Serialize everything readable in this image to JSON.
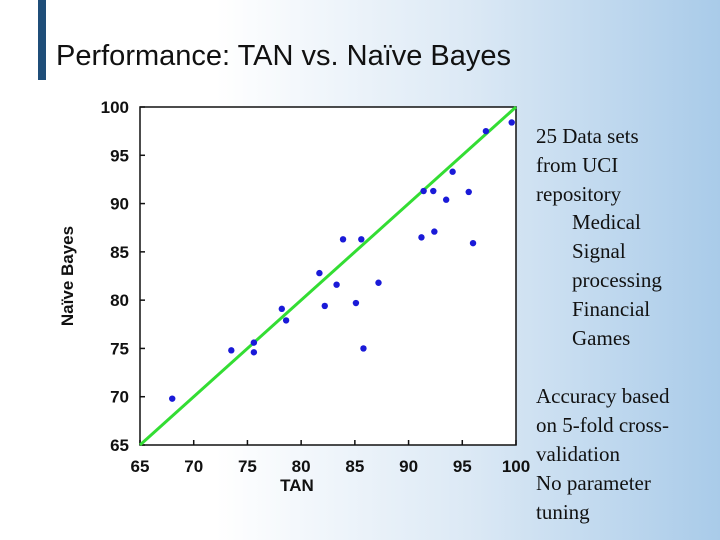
{
  "title": "Performance: TAN vs. Naïve Bayes",
  "notes": {
    "block1": [
      "25 Data sets",
      "from UCI",
      "repository"
    ],
    "block1_sub": [
      "Medical",
      "Signal",
      "processing",
      "Financial",
      "Games"
    ],
    "block2": [
      "Accuracy based",
      "on 5-fold cross-",
      "validation",
      "No parameter",
      "tuning"
    ]
  },
  "colors": {
    "points": "#1a1ad8",
    "diagonal": "#33dd33",
    "title_bar": "#1f4e79"
  },
  "chart_data": {
    "type": "scatter",
    "xlabel": "TAN",
    "ylabel": "Naïve Bayes",
    "xlim": [
      65,
      100
    ],
    "ylim": [
      65,
      100
    ],
    "xticks": [
      65,
      70,
      75,
      80,
      85,
      90,
      95,
      100
    ],
    "yticks": [
      100,
      95,
      90,
      85,
      80,
      75,
      70,
      65
    ],
    "reference_line": {
      "from": [
        65,
        65
      ],
      "to": [
        100,
        100
      ]
    },
    "points": [
      {
        "x": 68,
        "y": 69.8
      },
      {
        "x": 73.5,
        "y": 74.8
      },
      {
        "x": 75.6,
        "y": 75.6
      },
      {
        "x": 75.6,
        "y": 74.6
      },
      {
        "x": 78.2,
        "y": 79.1
      },
      {
        "x": 78.6,
        "y": 77.9
      },
      {
        "x": 81.7,
        "y": 82.8
      },
      {
        "x": 82.2,
        "y": 79.4
      },
      {
        "x": 83.3,
        "y": 81.6
      },
      {
        "x": 83.9,
        "y": 86.3
      },
      {
        "x": 85.1,
        "y": 79.7
      },
      {
        "x": 85.6,
        "y": 86.3
      },
      {
        "x": 85.8,
        "y": 75
      },
      {
        "x": 87.2,
        "y": 81.8
      },
      {
        "x": 91.2,
        "y": 86.5
      },
      {
        "x": 91.4,
        "y": 91.3
      },
      {
        "x": 92.3,
        "y": 91.3
      },
      {
        "x": 92.4,
        "y": 87.1
      },
      {
        "x": 93.5,
        "y": 90.4
      },
      {
        "x": 94.1,
        "y": 93.3
      },
      {
        "x": 95.6,
        "y": 91.2
      },
      {
        "x": 96,
        "y": 85.9
      },
      {
        "x": 97.2,
        "y": 97.5
      },
      {
        "x": 99.6,
        "y": 98.4
      }
    ]
  }
}
